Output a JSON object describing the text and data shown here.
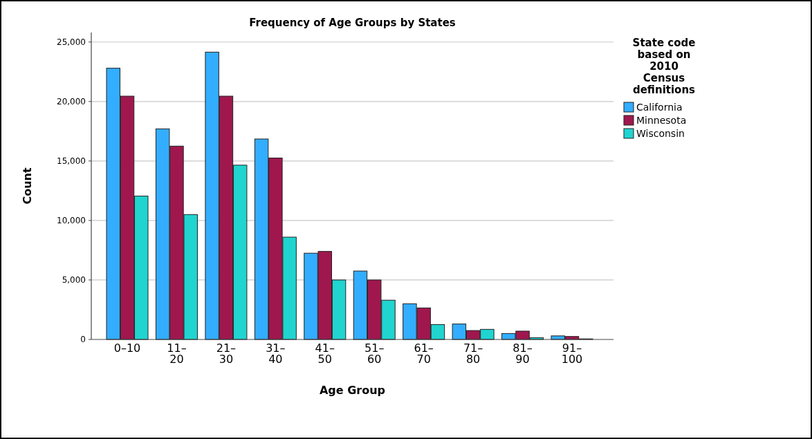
{
  "chart_data": {
    "type": "bar",
    "title": "Frequency of Age Groups by States",
    "xlabel": "Age Group",
    "ylabel": "Count",
    "legend_title": "State code based on 2010 Census definitions",
    "legend": "right",
    "grid": "y",
    "categories": [
      "0–10",
      "11–20",
      "21–30",
      "31–40",
      "41–50",
      "51–60",
      "61–70",
      "71–80",
      "81–90",
      "91–100"
    ],
    "ylim": [
      0,
      25800
    ],
    "yticks": [
      0,
      {
        "value": 5000,
        "label": "5,000"
      },
      {
        "value": 10000,
        "label": "10,000"
      },
      {
        "value": 15000,
        "label": "15,000"
      },
      {
        "value": 20000,
        "label": "20,000"
      },
      {
        "value": 25000,
        "label": "25,000"
      }
    ],
    "series": [
      {
        "name": "California",
        "color": "#33adff",
        "values": [
          22800,
          17700,
          24150,
          16850,
          7250,
          5750,
          3000,
          1300,
          500,
          300
        ]
      },
      {
        "name": "Minnesota",
        "color": "#a0174e",
        "values": [
          20450,
          16250,
          20450,
          15250,
          7400,
          5000,
          2650,
          750,
          700,
          250
        ]
      },
      {
        "name": "Wisconsin",
        "color": "#20d4d0",
        "values": [
          12050,
          10500,
          14650,
          8600,
          5000,
          3300,
          1250,
          850,
          150,
          50
        ]
      }
    ]
  }
}
